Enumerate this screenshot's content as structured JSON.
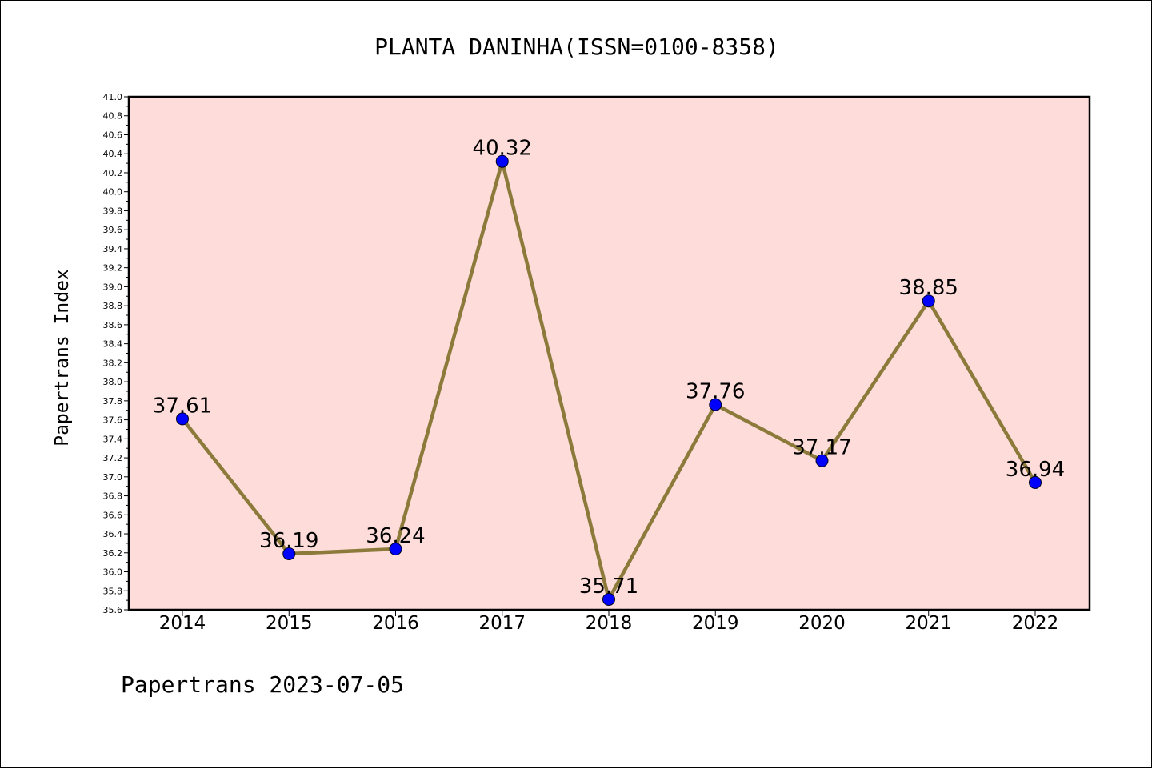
{
  "chart_data": {
    "type": "line",
    "title": "PLANTA DANINHA(ISSN=0100-8358)",
    "xlabel": "",
    "ylabel": "Papertrans Index",
    "footer": "Papertrans 2023-07-05",
    "categories": [
      "2014",
      "2015",
      "2016",
      "2017",
      "2018",
      "2019",
      "2020",
      "2021",
      "2022"
    ],
    "values": [
      37.61,
      36.19,
      36.24,
      40.32,
      35.71,
      37.76,
      37.17,
      38.85,
      36.94
    ],
    "data_labels": [
      "37.61",
      "36.19",
      "36.24",
      "40.32",
      "35.71",
      "37.76",
      "37.17",
      "38.85",
      "36.94"
    ],
    "ylim": [
      35.6,
      41.0
    ],
    "yticks": [
      "35.6",
      "35.8",
      "36.0",
      "36.2",
      "36.4",
      "36.6",
      "36.8",
      "37.0",
      "37.2",
      "37.4",
      "37.6",
      "37.8",
      "38.0",
      "38.2",
      "38.4",
      "38.6",
      "38.8",
      "39.0",
      "39.2",
      "39.4",
      "39.6",
      "39.8",
      "40.0",
      "40.2",
      "40.4",
      "40.6",
      "40.8",
      "41.0"
    ],
    "grid": false,
    "colors": {
      "plot_background": "#fddcda",
      "line": "#8b7a3a",
      "marker": "#0000ff"
    }
  }
}
